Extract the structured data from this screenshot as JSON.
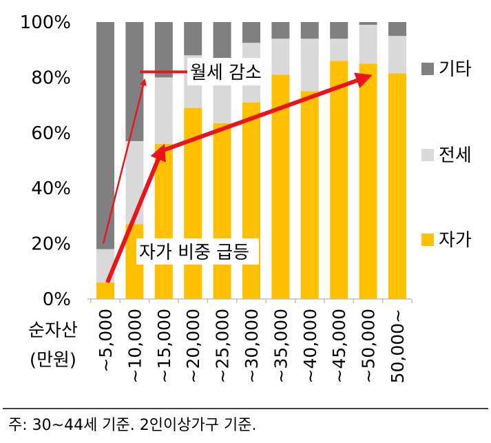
{
  "chart_data": {
    "type": "bar",
    "stacked": true,
    "percent": true,
    "categories": [
      "~5,000",
      "~10,000",
      "~15,000",
      "~20,000",
      "~25,000",
      "~30,000",
      "~35,000",
      "~40,000",
      "~45,000",
      "~50,000",
      "50,000~"
    ],
    "series": [
      {
        "name": "자가",
        "color": "#FFC000",
        "values": [
          6,
          27,
          56,
          69,
          63.5,
          71,
          81,
          75,
          86,
          85,
          81.5
        ]
      },
      {
        "name": "전세",
        "color": "#D9D9D9",
        "values": [
          12,
          30,
          24,
          19,
          23.5,
          21.5,
          13,
          19,
          8,
          14,
          13.5
        ]
      },
      {
        "name": "기타",
        "color": "#808080",
        "values": [
          82,
          43,
          20,
          12,
          13,
          7.5,
          6,
          6,
          6,
          1,
          5
        ]
      }
    ],
    "ylim": [
      0,
      100
    ],
    "yticks": [
      0,
      20,
      40,
      60,
      80,
      100
    ],
    "ytick_labels": [
      "0%",
      "20%",
      "40%",
      "60%",
      "80%",
      "100%"
    ],
    "xlabel": "순자산",
    "xlabel_unit": "(만원)",
    "legend_position": "right",
    "annotations": [
      {
        "text": "월세 감소",
        "arrow_from": {
          "category": "~5,000",
          "y": 20
        },
        "arrow_to": {
          "category": "~10,000",
          "y": 80
        }
      },
      {
        "text": "자가 비중 급등",
        "arrow_path": [
          {
            "category": "~5,000",
            "y": 6
          },
          {
            "category": "~15,000",
            "y": 55
          },
          {
            "category": "~50,000",
            "y": 80
          }
        ]
      }
    ]
  },
  "footnote": "주: 30~44세 기준. 2인이상가구 기준."
}
